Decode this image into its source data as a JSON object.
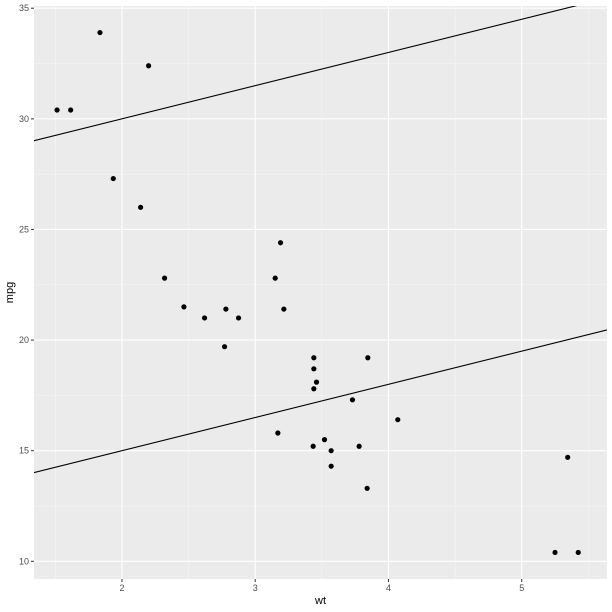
{
  "chart_data": {
    "type": "scatter",
    "xlabel": "wt",
    "ylabel": "mpg",
    "xlim": [
      1.34,
      5.64
    ],
    "ylim": [
      9.2,
      35.1
    ],
    "x_ticks": [
      2,
      3,
      4,
      5
    ],
    "y_ticks": [
      10,
      15,
      20,
      25,
      30,
      35
    ],
    "x_tick_labels": [
      "2",
      "3",
      "4",
      "5"
    ],
    "y_tick_labels": [
      "10",
      "15",
      "20",
      "25",
      "30",
      "35"
    ],
    "grid": true,
    "points": [
      {
        "x": 1.513,
        "y": 30.4
      },
      {
        "x": 1.615,
        "y": 30.4
      },
      {
        "x": 1.835,
        "y": 33.9
      },
      {
        "x": 1.935,
        "y": 27.3
      },
      {
        "x": 2.14,
        "y": 26.0
      },
      {
        "x": 2.2,
        "y": 32.4
      },
      {
        "x": 2.32,
        "y": 22.8
      },
      {
        "x": 2.465,
        "y": 21.5
      },
      {
        "x": 2.62,
        "y": 21.0
      },
      {
        "x": 2.77,
        "y": 19.7
      },
      {
        "x": 2.78,
        "y": 21.4
      },
      {
        "x": 2.875,
        "y": 21.0
      },
      {
        "x": 3.15,
        "y": 22.8
      },
      {
        "x": 3.17,
        "y": 15.8
      },
      {
        "x": 3.19,
        "y": 24.4
      },
      {
        "x": 3.215,
        "y": 21.4
      },
      {
        "x": 3.435,
        "y": 15.2
      },
      {
        "x": 3.44,
        "y": 18.7
      },
      {
        "x": 3.44,
        "y": 19.2
      },
      {
        "x": 3.44,
        "y": 17.8
      },
      {
        "x": 3.46,
        "y": 18.1
      },
      {
        "x": 3.52,
        "y": 15.5
      },
      {
        "x": 3.57,
        "y": 15.0
      },
      {
        "x": 3.57,
        "y": 14.3
      },
      {
        "x": 3.73,
        "y": 17.3
      },
      {
        "x": 3.78,
        "y": 15.2
      },
      {
        "x": 3.84,
        "y": 13.3
      },
      {
        "x": 3.845,
        "y": 19.2
      },
      {
        "x": 4.07,
        "y": 16.4
      },
      {
        "x": 5.25,
        "y": 10.4
      },
      {
        "x": 5.345,
        "y": 14.7
      },
      {
        "x": 5.424,
        "y": 10.4
      }
    ],
    "lines": [
      {
        "intercept": 27.0,
        "slope": 1.5
      },
      {
        "intercept": 12.0,
        "slope": 1.5
      }
    ]
  }
}
